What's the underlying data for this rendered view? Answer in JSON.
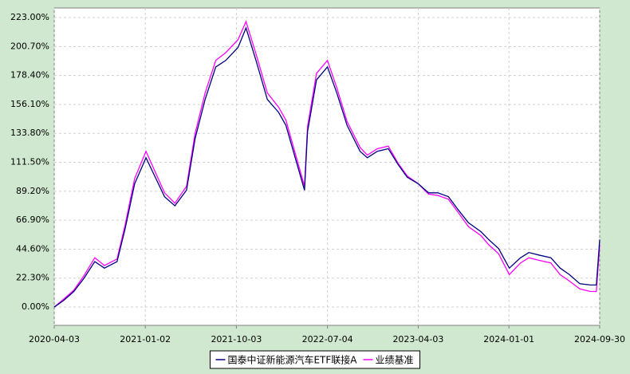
{
  "chart_data": {
    "type": "line",
    "x": [
      "2020-04-03",
      "2020-05-01",
      "2020-06-01",
      "2020-07-01",
      "2020-08-03",
      "2020-09-01",
      "2020-10-09",
      "2020-11-02",
      "2020-12-01",
      "2021-01-04",
      "2021-02-01",
      "2021-03-01",
      "2021-04-01",
      "2021-05-06",
      "2021-06-01",
      "2021-07-01",
      "2021-08-02",
      "2021-09-01",
      "2021-10-08",
      "2021-11-01",
      "2021-12-01",
      "2022-01-04",
      "2022-02-07",
      "2022-03-01",
      "2022-04-26",
      "2022-05-05",
      "2022-06-01",
      "2022-07-04",
      "2022-08-01",
      "2022-09-01",
      "2022-10-10",
      "2022-11-01",
      "2022-12-01",
      "2023-01-03",
      "2023-02-01",
      "2023-03-01",
      "2023-04-03",
      "2023-05-04",
      "2023-06-01",
      "2023-07-03",
      "2023-08-01",
      "2023-09-01",
      "2023-10-09",
      "2023-11-01",
      "2023-12-01",
      "2024-01-02",
      "2024-02-05",
      "2024-03-01",
      "2024-04-01",
      "2024-05-06",
      "2024-06-03",
      "2024-07-01",
      "2024-08-01",
      "2024-09-02",
      "2024-09-20",
      "2024-09-30"
    ],
    "series": [
      {
        "name": "国泰中证新能源汽车ETF联接A",
        "color": "#000080",
        "values": [
          0,
          5,
          12,
          22,
          35,
          30,
          35,
          60,
          95,
          115,
          100,
          85,
          78,
          90,
          130,
          160,
          185,
          190,
          200,
          215,
          190,
          160,
          150,
          140,
          90,
          135,
          175,
          185,
          165,
          140,
          120,
          115,
          120,
          122,
          110,
          100,
          95,
          88,
          88,
          85,
          75,
          65,
          58,
          52,
          45,
          30,
          38,
          42,
          40,
          38,
          30,
          25,
          18,
          17,
          17,
          52
        ]
      },
      {
        "name": "业绩基准",
        "color": "#ff00ff",
        "values": [
          0,
          6,
          13,
          24,
          38,
          32,
          37,
          63,
          99,
          120,
          104,
          88,
          80,
          93,
          134,
          165,
          190,
          196,
          206,
          220,
          195,
          165,
          154,
          144,
          93,
          139,
          180,
          190,
          169,
          143,
          123,
          117,
          122,
          124,
          111,
          101,
          95,
          87,
          86,
          83,
          73,
          62,
          55,
          48,
          41,
          25,
          34,
          38,
          36,
          34,
          25,
          20,
          14,
          12,
          12,
          48
        ]
      }
    ],
    "xlim": [
      "2020-04-03",
      "2024-09-30"
    ],
    "xticks": [
      "2020-04-03",
      "2021-01-02",
      "2021-10-03",
      "2022-07-04",
      "2023-04-03",
      "2024-01-01",
      "2024-09-30"
    ],
    "ylim": [
      -14.1,
      230.4
    ],
    "yticks": [
      {
        "value": 0,
        "label": "0.00%"
      },
      {
        "value": 22.3,
        "label": "22.30%"
      },
      {
        "value": 44.6,
        "label": "44.60%"
      },
      {
        "value": 66.9,
        "label": "66.90%"
      },
      {
        "value": 89.2,
        "label": "89.20%"
      },
      {
        "value": 111.5,
        "label": "111.50%"
      },
      {
        "value": 133.8,
        "label": "133.80%"
      },
      {
        "value": 156.1,
        "label": "156.10%"
      },
      {
        "value": 178.4,
        "label": "178.40%"
      },
      {
        "value": 200.7,
        "label": "200.70%"
      },
      {
        "value": 223,
        "label": "223.00%"
      }
    ],
    "grid": true
  }
}
